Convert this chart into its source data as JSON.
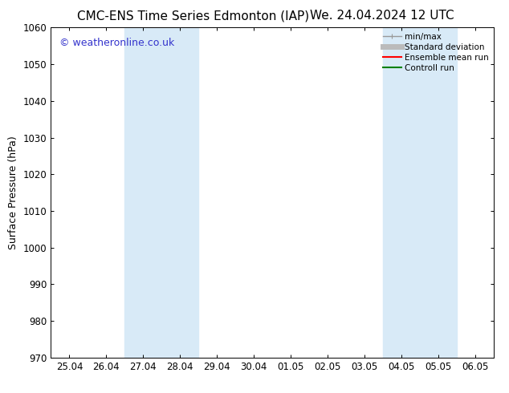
{
  "title_left": "CMC-ENS Time Series Edmonton (IAP)",
  "title_right": "We. 24.04.2024 12 UTC",
  "ylabel": "Surface Pressure (hPa)",
  "ylim": [
    970,
    1060
  ],
  "yticks": [
    970,
    980,
    990,
    1000,
    1010,
    1020,
    1030,
    1040,
    1050,
    1060
  ],
  "xlabels": [
    "25.04",
    "26.04",
    "27.04",
    "28.04",
    "29.04",
    "30.04",
    "01.05",
    "02.05",
    "03.05",
    "04.05",
    "05.05",
    "06.05"
  ],
  "x_positions": [
    0,
    1,
    2,
    3,
    4,
    5,
    6,
    7,
    8,
    9,
    10,
    11
  ],
  "shaded_bands": [
    {
      "xmin": 1.5,
      "xmax": 3.5,
      "color": "#d8eaf7"
    },
    {
      "xmin": 8.5,
      "xmax": 10.5,
      "color": "#d8eaf7"
    }
  ],
  "watermark_text": "© weatheronline.co.uk",
  "watermark_color": "#3333cc",
  "watermark_fontsize": 9,
  "legend_labels": [
    "min/max",
    "Standard deviation",
    "Ensemble mean run",
    "Controll run"
  ],
  "legend_colors": [
    "#999999",
    "#bbbbbb",
    "#ff0000",
    "#008000"
  ],
  "legend_lw": [
    1.0,
    5.0,
    1.5,
    1.5
  ],
  "background_color": "#ffffff",
  "plot_background": "#ffffff",
  "title_fontsize": 11,
  "axis_label_fontsize": 9,
  "tick_fontsize": 8.5,
  "legend_fontsize": 7.5
}
